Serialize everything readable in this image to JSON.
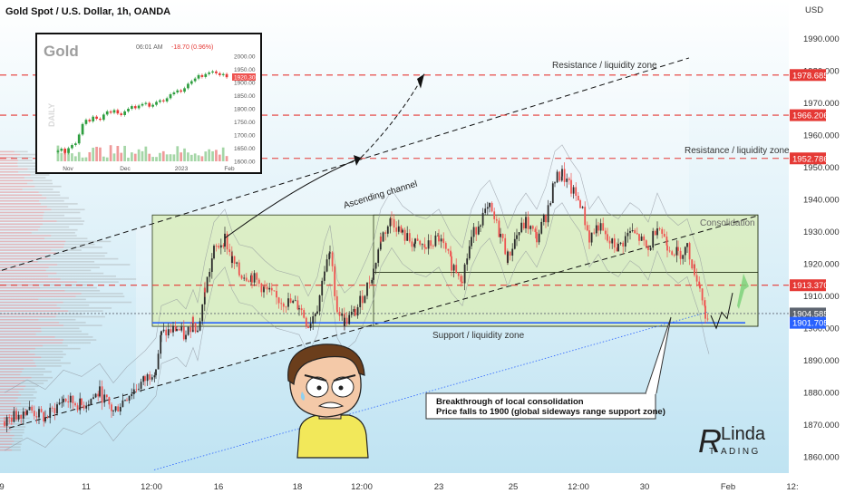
{
  "header": {
    "symbol_title": "Gold Spot / U.S. Dollar, 1h, OANDA",
    "currency": "USD"
  },
  "chart_data": {
    "type": "candlestick",
    "y_axis": {
      "range": [
        1855,
        2002
      ],
      "ticks": [
        1860,
        1870,
        1880,
        1890,
        1900,
        1910,
        1920,
        1930,
        1940,
        1950,
        1960,
        1970,
        1980,
        1990
      ],
      "tick_labels": [
        "1860.000",
        "1870.000",
        "1880.000",
        "1890.000",
        "1900.000",
        "1910.000",
        "1920.000",
        "1930.000",
        "1940.000",
        "1950.000",
        "1960.000",
        "1970.000",
        "1980.000",
        "1990.000"
      ]
    },
    "x_axis": {
      "range": [
        0,
        890
      ],
      "ticks": [
        {
          "label": "9",
          "pos": 2
        },
        {
          "label": "11",
          "pos": 95
        },
        {
          "label": "12:00",
          "pos": 167
        },
        {
          "label": "16",
          "pos": 241
        },
        {
          "label": "18",
          "pos": 328
        },
        {
          "label": "12:00",
          "pos": 399
        },
        {
          "label": "23",
          "pos": 484
        },
        {
          "label": "25",
          "pos": 566
        },
        {
          "label": "12:00",
          "pos": 638
        },
        {
          "label": "30",
          "pos": 711
        },
        {
          "label": "Feb",
          "pos": 803
        },
        {
          "label": "12:",
          "pos": 874
        }
      ]
    },
    "price_path": [
      [
        5,
        1871
      ],
      [
        30,
        1875
      ],
      [
        50,
        1872
      ],
      [
        70,
        1878
      ],
      [
        90,
        1876
      ],
      [
        110,
        1880
      ],
      [
        125,
        1874
      ],
      [
        140,
        1879
      ],
      [
        160,
        1884
      ],
      [
        172,
        1888
      ],
      [
        178,
        1898
      ],
      [
        195,
        1900
      ],
      [
        205,
        1897
      ],
      [
        213,
        1903
      ],
      [
        218,
        1899
      ],
      [
        226,
        1912
      ],
      [
        236,
        1924
      ],
      [
        248,
        1928
      ],
      [
        256,
        1921
      ],
      [
        264,
        1917
      ],
      [
        278,
        1916
      ],
      [
        292,
        1912
      ],
      [
        305,
        1909
      ],
      [
        318,
        1908
      ],
      [
        330,
        1907
      ],
      [
        340,
        1901
      ],
      [
        350,
        1907
      ],
      [
        358,
        1918
      ],
      [
        364,
        1923
      ],
      [
        372,
        1906
      ],
      [
        380,
        1902
      ],
      [
        392,
        1905
      ],
      [
        405,
        1913
      ],
      [
        412,
        1918
      ],
      [
        420,
        1928
      ],
      [
        432,
        1934
      ],
      [
        444,
        1929
      ],
      [
        458,
        1926
      ],
      [
        470,
        1925
      ],
      [
        484,
        1928
      ],
      [
        498,
        1920
      ],
      [
        510,
        1916
      ],
      [
        520,
        1928
      ],
      [
        530,
        1934
      ],
      [
        540,
        1937
      ],
      [
        552,
        1929
      ],
      [
        560,
        1922
      ],
      [
        570,
        1929
      ],
      [
        580,
        1933
      ],
      [
        592,
        1928
      ],
      [
        602,
        1935
      ],
      [
        612,
        1946
      ],
      [
        620,
        1948
      ],
      [
        630,
        1943
      ],
      [
        640,
        1939
      ],
      [
        650,
        1928
      ],
      [
        660,
        1932
      ],
      [
        670,
        1927
      ],
      [
        682,
        1925
      ],
      [
        695,
        1930
      ],
      [
        705,
        1928
      ],
      [
        715,
        1924
      ],
      [
        725,
        1933
      ],
      [
        736,
        1926
      ],
      [
        748,
        1923
      ],
      [
        758,
        1925
      ],
      [
        766,
        1918
      ],
      [
        772,
        1913
      ],
      [
        778,
        1905
      ],
      [
        782,
        1901
      ]
    ],
    "horizontal_levels": [
      {
        "value": 1978.685,
        "label": "1978.685",
        "color": "#e53935",
        "style": "dashed"
      },
      {
        "value": 1966.206,
        "label": "1966.206",
        "color": "#e53935",
        "style": "dashed"
      },
      {
        "value": 1952.786,
        "label": "1952.786",
        "color": "#e53935",
        "style": "dashed"
      },
      {
        "value": 1913.37,
        "label": "1913.370",
        "color": "#e53935",
        "style": "dashed"
      },
      {
        "value": 1904.585,
        "label": "1904.585",
        "color": "#5d6470",
        "style": "dotted"
      },
      {
        "value": 1901.705,
        "label": "1901.705",
        "color": "#2962ff",
        "style": "solid"
      }
    ],
    "consolidation_box": {
      "x": [
        168,
        836
      ],
      "y": [
        1900.6,
        1935.2
      ],
      "inner_x": [
        412,
        836
      ],
      "inner_mid": 1917.4
    },
    "ascending_channel": {
      "lower": [
        [
          10,
          1869
        ],
        [
          836,
          1935
        ]
      ],
      "upper": [
        [
          2,
          1918
        ],
        [
          760,
          1984
        ]
      ]
    },
    "annotations": {
      "resistance_top": "Resistance / liquidity zone",
      "resistance_mid": "Resistance / liquidity zone",
      "ascending_channel": "Ascending channel",
      "consolidation": "Consolidation",
      "support": "Support / liquidity zone",
      "callout_line1": "Breakthrough of local consolidation",
      "callout_line2": "Price falls to 1900 (global sideways range support zone)"
    },
    "colors": {
      "up": "#26a69a",
      "down": "#ef5350",
      "zone_fill": "#d8ecb4",
      "sky_top": "#ffffff",
      "sky_bottom": "#bfe3f2"
    },
    "grid": false,
    "legend": "none"
  },
  "inset": {
    "title": "Gold",
    "time": "06:01 AM",
    "change": "-18.70 (0.96%)",
    "period_label": "DAILY",
    "current_price": "1920.30",
    "y_ticks": [
      "2000.00",
      "1950.00",
      "1900.00",
      "1850.00",
      "1800.00",
      "1750.00",
      "1700.00",
      "1650.00",
      "1600.00"
    ],
    "x_ticks": [
      "Nov",
      "Dec",
      "2023",
      "Feb"
    ],
    "closes": [
      1640,
      1648,
      1632,
      1650,
      1662,
      1668,
      1702,
      1742,
      1758,
      1752,
      1770,
      1762,
      1758,
      1778,
      1790,
      1785,
      1795,
      1782,
      1776,
      1790,
      1800,
      1810,
      1802,
      1812,
      1818,
      1822,
      1808,
      1815,
      1826,
      1832,
      1828,
      1840,
      1855,
      1862,
      1870,
      1865,
      1878,
      1895,
      1905,
      1915,
      1928,
      1921,
      1932,
      1938,
      1942,
      1935,
      1928,
      1932,
      1920
    ]
  },
  "brand": {
    "logo_letter": "R",
    "logo_text_top": "Linda",
    "logo_text_bottom": "T  ADING"
  }
}
